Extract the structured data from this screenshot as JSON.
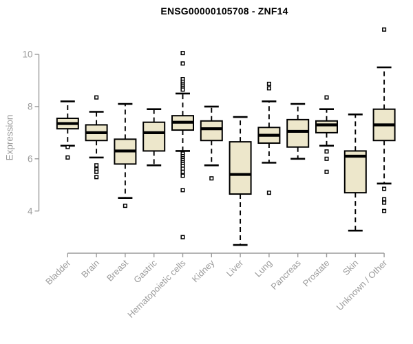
{
  "chart_data": {
    "type": "boxplot",
    "title": "ENSG00000105708 - ZNF14",
    "ylabel": "Expression",
    "xlabel": "",
    "yticks": [
      4,
      6,
      8,
      10
    ],
    "ylim": [
      2.5,
      11.2
    ],
    "grid": false,
    "legend": null,
    "categories": [
      "Bladder",
      "Brain",
      "Breast",
      "Gastric",
      "Hematopoietic cells",
      "Kidney",
      "Liver",
      "Lung",
      "Pancreas",
      "Prostate",
      "Skin",
      "Unknown / Other"
    ],
    "boxes": [
      {
        "category": "Bladder",
        "whisker_low": 6.5,
        "q1": 7.15,
        "median": 7.35,
        "q3": 7.55,
        "whisker_high": 8.2,
        "outliers": [
          6.45,
          6.05
        ]
      },
      {
        "category": "Brain",
        "whisker_low": 6.05,
        "q1": 6.7,
        "median": 7.0,
        "q3": 7.3,
        "whisker_high": 7.8,
        "outliers": [
          8.35,
          5.75,
          5.6,
          5.5,
          5.3
        ]
      },
      {
        "category": "Breast",
        "whisker_low": 4.5,
        "q1": 5.8,
        "median": 6.3,
        "q3": 6.75,
        "whisker_high": 8.1,
        "outliers": [
          4.2
        ]
      },
      {
        "category": "Gastric",
        "whisker_low": 5.75,
        "q1": 6.3,
        "median": 7.0,
        "q3": 7.4,
        "whisker_high": 7.9,
        "outliers": []
      },
      {
        "category": "Hematopoietic cells",
        "whisker_low": 6.3,
        "q1": 7.1,
        "median": 7.4,
        "q3": 7.65,
        "whisker_high": 8.5,
        "outliers": [
          10.05,
          9.65,
          9.05,
          8.95,
          8.87,
          8.8,
          8.72,
          8.65,
          6.2,
          6.1,
          6.02,
          5.95,
          5.87,
          5.8,
          5.72,
          5.62,
          5.5,
          5.35,
          4.8,
          3.0
        ]
      },
      {
        "category": "Kidney",
        "whisker_low": 5.75,
        "q1": 6.7,
        "median": 7.15,
        "q3": 7.45,
        "whisker_high": 8.0,
        "outliers": [
          5.25
        ]
      },
      {
        "category": "Liver",
        "whisker_low": 2.7,
        "q1": 4.65,
        "median": 5.4,
        "q3": 6.65,
        "whisker_high": 7.6,
        "outliers": []
      },
      {
        "category": "Lung",
        "whisker_low": 5.85,
        "q1": 6.6,
        "median": 6.9,
        "q3": 7.2,
        "whisker_high": 8.2,
        "outliers": [
          8.87,
          8.7,
          4.7
        ]
      },
      {
        "category": "Pancreas",
        "whisker_low": 6.0,
        "q1": 6.45,
        "median": 7.05,
        "q3": 7.5,
        "whisker_high": 8.1,
        "outliers": []
      },
      {
        "category": "Prostate",
        "whisker_low": 6.5,
        "q1": 7.0,
        "median": 7.3,
        "q3": 7.45,
        "whisker_high": 7.9,
        "outliers": [
          8.35,
          6.28,
          6.0,
          5.5
        ]
      },
      {
        "category": "Skin",
        "whisker_low": 3.25,
        "q1": 4.7,
        "median": 6.1,
        "q3": 6.3,
        "whisker_high": 7.7,
        "outliers": []
      },
      {
        "category": "Unknown / Other",
        "whisker_low": 5.05,
        "q1": 6.7,
        "median": 7.3,
        "q3": 7.9,
        "whisker_high": 9.5,
        "outliers": [
          10.95,
          4.85,
          4.45,
          4.32,
          4.0
        ]
      }
    ],
    "colors": {
      "box_fill": "#EDE7CB",
      "box_border": "#000000",
      "median": "#000000",
      "whisker": "#000000",
      "outlier_stroke": "#000000",
      "outlier_fill": "#ffffff",
      "axis": "#9B9B9B",
      "tick_label": "#9B9B9B",
      "title": "#000000"
    }
  }
}
